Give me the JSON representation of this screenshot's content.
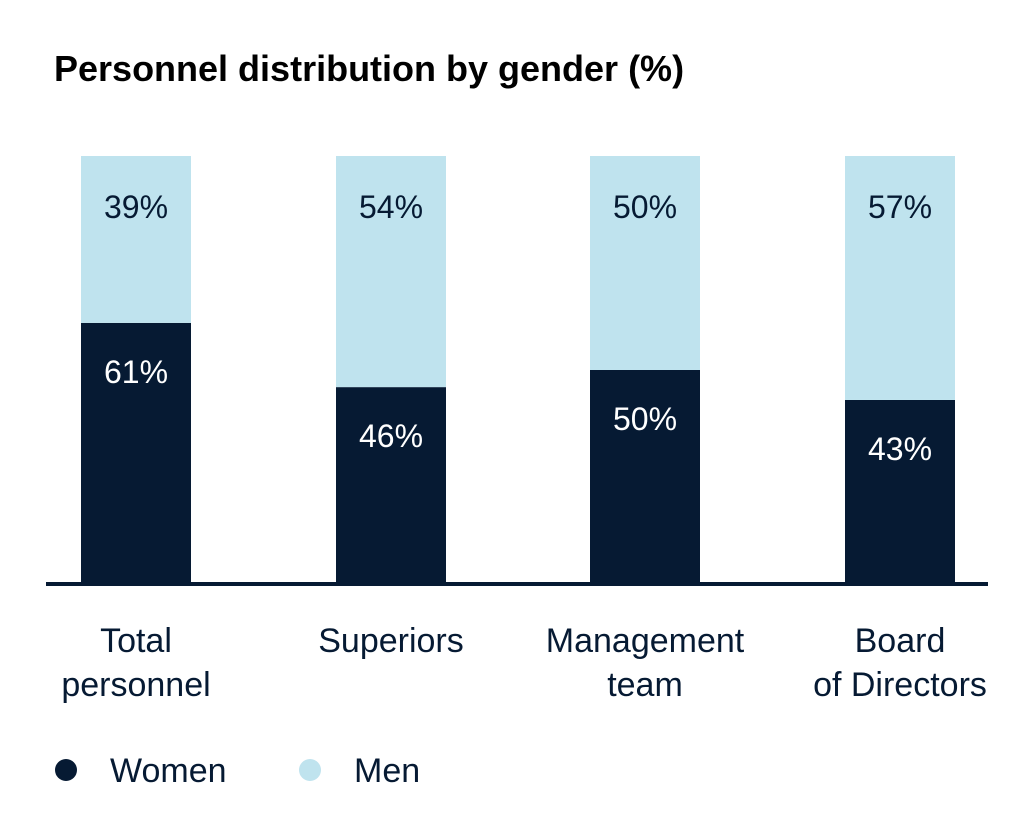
{
  "chart_data": {
    "type": "bar",
    "stacked": true,
    "title": "Personnel distribution by gender (%)",
    "categories": [
      [
        "Total",
        "personnel"
      ],
      [
        "Superiors"
      ],
      [
        "Management",
        "team"
      ],
      [
        "Board",
        "of Directors"
      ]
    ],
    "series": [
      {
        "name": "Women",
        "color": "#061a33",
        "values": [
          61,
          46,
          50,
          43
        ],
        "labels": [
          "61%",
          "46%",
          "50%",
          "43%"
        ]
      },
      {
        "name": "Men",
        "color": "#bfe3ee",
        "values": [
          39,
          54,
          50,
          57
        ],
        "labels": [
          "39%",
          "54%",
          "50%",
          "57%"
        ]
      }
    ],
    "ylim": [
      0,
      100
    ],
    "grid": false,
    "legend_position": "bottom-left",
    "baseline_color": "#061a33"
  }
}
